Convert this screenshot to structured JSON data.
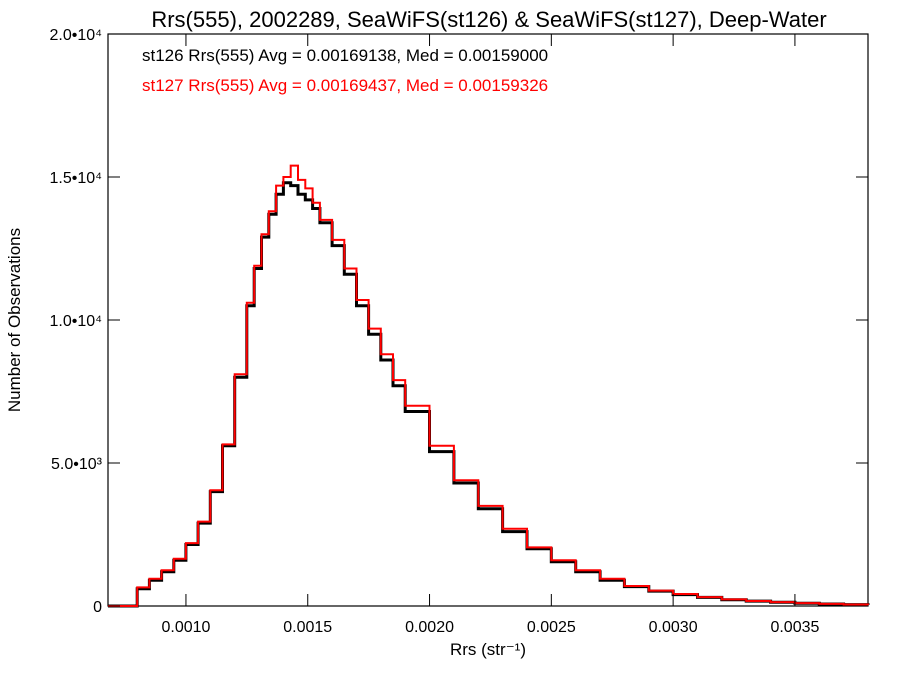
{
  "chart_data": {
    "type": "line",
    "title": "Rrs(555), 2002289, SeaWiFS(st126) & SeaWiFS(st127), Deep-Water",
    "xlabel": "Rrs (str⁻¹)",
    "ylabel": "Number of Observations",
    "xlim": [
      0.00068,
      0.0038
    ],
    "ylim": [
      0,
      20000
    ],
    "x_ticks": [
      {
        "value": 0.001,
        "label": "0.0010"
      },
      {
        "value": 0.0015,
        "label": "0.0015"
      },
      {
        "value": 0.002,
        "label": "0.0020"
      },
      {
        "value": 0.0025,
        "label": "0.0025"
      },
      {
        "value": 0.003,
        "label": "0.0030"
      },
      {
        "value": 0.0035,
        "label": "0.0035"
      }
    ],
    "y_ticks": [
      {
        "value": 0,
        "label": "0"
      },
      {
        "value": 5000,
        "label": "5.0•10³"
      },
      {
        "value": 10000,
        "label": "1.0•10⁴"
      },
      {
        "value": 15000,
        "label": "1.5•10⁴"
      },
      {
        "value": 20000,
        "label": "2.0•10⁴"
      }
    ],
    "grid": false,
    "legend_position": "top-left",
    "annotations": [
      {
        "text": "st126 Rrs(555) Avg = 0.00169138, Med = 0.00159000",
        "color": "#000000"
      },
      {
        "text": "st127 Rrs(555) Avg = 0.00169437, Med = 0.00159326",
        "color": "#ff0000"
      }
    ],
    "series": [
      {
        "name": "st126",
        "color": "#000000",
        "step": true,
        "x": [
          0.00068,
          0.0008,
          0.00085,
          0.0009,
          0.00095,
          0.001,
          0.00105,
          0.0011,
          0.00115,
          0.0012,
          0.00125,
          0.00128,
          0.00131,
          0.00134,
          0.00137,
          0.0014,
          0.00143,
          0.00146,
          0.00149,
          0.00152,
          0.00155,
          0.0016,
          0.00165,
          0.0017,
          0.00175,
          0.0018,
          0.00185,
          0.0019,
          0.002,
          0.0021,
          0.0022,
          0.0023,
          0.0024,
          0.0025,
          0.0026,
          0.0027,
          0.0028,
          0.0029,
          0.003,
          0.0031,
          0.0032,
          0.0033,
          0.0034,
          0.0035,
          0.0036,
          0.0037,
          0.0038
        ],
        "y": [
          0,
          600,
          900,
          1200,
          1600,
          2150,
          2900,
          4000,
          5600,
          8000,
          10500,
          11800,
          12900,
          13700,
          14400,
          14800,
          14700,
          14400,
          14200,
          13900,
          13400,
          12600,
          11600,
          10500,
          9500,
          8600,
          7700,
          6800,
          5400,
          4300,
          3400,
          2600,
          2000,
          1550,
          1200,
          900,
          680,
          520,
          400,
          300,
          220,
          170,
          130,
          95,
          70,
          50,
          35
        ]
      },
      {
        "name": "st127",
        "color": "#ff0000",
        "step": true,
        "x": [
          0.00068,
          0.0008,
          0.00085,
          0.0009,
          0.00095,
          0.001,
          0.00105,
          0.0011,
          0.00115,
          0.0012,
          0.00125,
          0.00128,
          0.00131,
          0.00134,
          0.00137,
          0.0014,
          0.00143,
          0.00146,
          0.00149,
          0.00152,
          0.00155,
          0.0016,
          0.00165,
          0.0017,
          0.00175,
          0.0018,
          0.00185,
          0.0019,
          0.002,
          0.0021,
          0.0022,
          0.0023,
          0.0024,
          0.0025,
          0.0026,
          0.0027,
          0.0028,
          0.0029,
          0.003,
          0.0031,
          0.0032,
          0.0033,
          0.0034,
          0.0035,
          0.0036,
          0.0037,
          0.0038
        ],
        "y": [
          0,
          650,
          950,
          1250,
          1650,
          2200,
          2950,
          4050,
          5650,
          8100,
          10600,
          11900,
          13000,
          13800,
          14700,
          15000,
          15400,
          14900,
          14600,
          14100,
          13500,
          12800,
          11800,
          10700,
          9700,
          8800,
          7900,
          7000,
          5600,
          4400,
          3500,
          2700,
          2050,
          1600,
          1250,
          950,
          700,
          540,
          420,
          310,
          230,
          175,
          135,
          100,
          72,
          52,
          36
        ]
      }
    ]
  }
}
